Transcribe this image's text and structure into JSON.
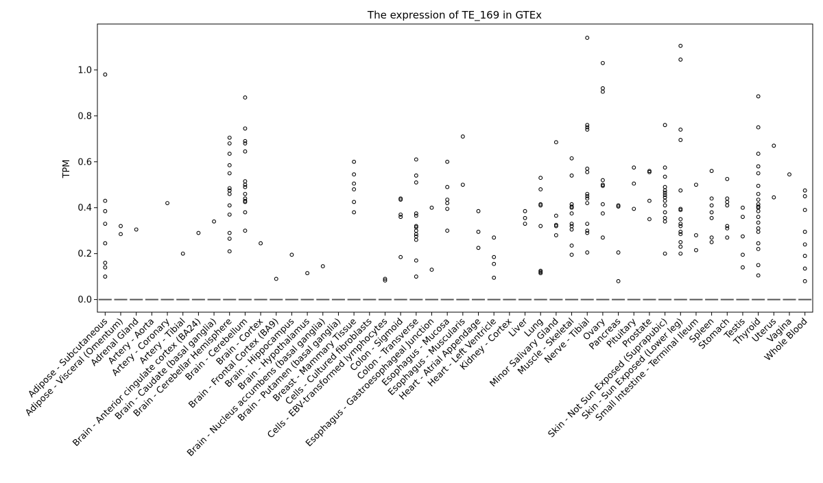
{
  "chart_data": {
    "type": "box",
    "title": "The expression of TE_169 in GTEx",
    "xlabel": "",
    "ylabel": "TPM",
    "ylim": [
      -0.055,
      1.2
    ],
    "yticks": [
      0.0,
      0.2,
      0.4,
      0.6,
      0.8,
      1.0
    ],
    "ytick_labels": [
      "0.0",
      "0.2",
      "0.4",
      "0.6",
      "0.8",
      "1.0"
    ],
    "median_color": "#555555",
    "marker_color": "#000000",
    "categories": [
      "Adipose - Subcutaneous",
      "Adipose - Visceral (Omentum)",
      "Adrenal Gland",
      "Artery - Aorta",
      "Artery - Coronary",
      "Artery - Tibial",
      "Brain - Anterior cingulate cortex (BA24)",
      "Brain - Caudate (basal ganglia)",
      "Brain - Cerebellar Hemisphere",
      "Brain - Cerebellum",
      "Brain - Cortex",
      "Brain - Frontal Cortex (BA9)",
      "Brain - Hippocampus",
      "Brain - Hypothalamus",
      "Brain - Nucleus accumbens (basal ganglia)",
      "Brain - Putamen (basal ganglia)",
      "Breast - Mammary Tissue",
      "Cells - Cultured fibroblasts",
      "Cells - EBV-transformed lymphocytes",
      "Colon - Sigmoid",
      "Colon - Transverse",
      "Esophagus - Gastroesophageal Junction",
      "Esophagus - Mucosa",
      "Esophagus - Muscularis",
      "Heart - Atrial Appendage",
      "Heart - Left Ventricle",
      "Kidney - Cortex",
      "Liver",
      "Lung",
      "Minor Salivary Gland",
      "Muscle - Skeletal",
      "Nerve - Tibial",
      "Ovary",
      "Pancreas",
      "Pituitary",
      "Prostate",
      "Skin - Not Sun Exposed (Suprapubic)",
      "Skin - Sun Exposed (Lower leg)",
      "Small Intestine - Terminal Ileum",
      "Spleen",
      "Stomach",
      "Testis",
      "Thyroid",
      "Uterus",
      "Vagina",
      "Whole Blood"
    ],
    "medians": [
      0,
      0,
      0,
      0,
      0,
      0,
      0,
      0,
      0,
      0,
      0,
      0,
      0,
      0,
      0,
      0,
      0,
      0,
      0,
      0,
      0,
      0,
      0,
      0,
      0,
      0,
      0,
      0,
      0,
      0,
      0,
      0,
      0,
      0,
      0,
      0,
      0,
      0,
      0,
      0,
      0,
      0,
      0,
      0,
      0,
      0
    ],
    "outliers": [
      [
        0.98,
        0.43,
        0.385,
        0.33,
        0.245,
        0.16,
        0.14,
        0.1
      ],
      [
        0.32,
        0.285
      ],
      [
        0.305
      ],
      [],
      [
        0.42
      ],
      [
        0.2
      ],
      [
        0.29
      ],
      [
        0.34
      ],
      [
        0.705,
        0.68,
        0.635,
        0.585,
        0.55,
        0.485,
        0.475,
        0.46,
        0.41,
        0.37,
        0.29,
        0.265,
        0.21
      ],
      [
        0.88,
        0.745,
        0.69,
        0.68,
        0.645,
        0.515,
        0.5,
        0.49,
        0.46,
        0.44,
        0.43,
        0.425,
        0.38,
        0.3
      ],
      [
        0.245
      ],
      [
        0.09
      ],
      [
        0.195
      ],
      [
        0.115
      ],
      [
        0.145
      ],
      [],
      [
        0.6,
        0.545,
        0.505,
        0.48,
        0.425,
        0.38
      ],
      [],
      [
        0.09,
        0.083
      ],
      [
        0.44,
        0.435,
        0.37,
        0.36,
        0.185
      ],
      [
        0.61,
        0.54,
        0.51,
        0.375,
        0.365,
        0.32,
        0.315,
        0.3,
        0.285,
        0.275,
        0.26,
        0.17,
        0.1
      ],
      [
        0.4,
        0.13
      ],
      [
        0.6,
        0.49,
        0.435,
        0.42,
        0.395,
        0.3
      ],
      [
        0.71,
        0.5
      ],
      [
        0.385,
        0.295,
        0.225
      ],
      [
        0.27,
        0.185,
        0.155,
        0.095
      ],
      [],
      [
        0.385,
        0.355,
        0.33
      ],
      [
        0.53,
        0.48,
        0.415,
        0.41,
        0.32,
        0.125,
        0.12,
        0.115
      ],
      [
        0.685,
        0.365,
        0.325,
        0.32,
        0.28
      ],
      [
        0.615,
        0.54,
        0.415,
        0.405,
        0.4,
        0.375,
        0.33,
        0.32,
        0.305,
        0.235,
        0.195
      ],
      [
        1.14,
        0.76,
        0.75,
        0.74,
        0.57,
        0.555,
        0.46,
        0.45,
        0.44,
        0.42,
        0.33,
        0.3,
        0.29,
        0.205
      ],
      [
        1.03,
        0.92,
        0.905,
        0.52,
        0.5,
        0.495,
        0.415,
        0.375,
        0.27
      ],
      [
        0.41,
        0.405,
        0.205,
        0.08
      ],
      [
        0.575,
        0.505,
        0.395
      ],
      [
        0.56,
        0.555,
        0.43,
        0.35
      ],
      [
        0.76,
        0.575,
        0.535,
        0.49,
        0.475,
        0.465,
        0.455,
        0.445,
        0.43,
        0.41,
        0.38,
        0.355,
        0.34,
        0.2
      ],
      [
        1.105,
        1.045,
        0.74,
        0.695,
        0.475,
        0.395,
        0.39,
        0.35,
        0.33,
        0.32,
        0.295,
        0.285,
        0.25,
        0.23,
        0.2
      ],
      [
        0.5,
        0.28,
        0.215
      ],
      [
        0.56,
        0.44,
        0.41,
        0.38,
        0.355,
        0.27,
        0.25
      ],
      [
        0.525,
        0.44,
        0.425,
        0.41,
        0.32,
        0.31,
        0.27
      ],
      [
        0.4,
        0.36,
        0.275,
        0.195,
        0.14
      ],
      [
        0.885,
        0.75,
        0.635,
        0.58,
        0.55,
        0.495,
        0.46,
        0.435,
        0.415,
        0.405,
        0.4,
        0.385,
        0.36,
        0.335,
        0.31,
        0.295,
        0.245,
        0.22,
        0.15,
        0.105
      ],
      [
        0.67,
        0.445
      ],
      [
        0.545
      ],
      [
        0.475,
        0.45,
        0.39,
        0.295,
        0.24,
        0.19,
        0.135,
        0.08
      ]
    ]
  }
}
